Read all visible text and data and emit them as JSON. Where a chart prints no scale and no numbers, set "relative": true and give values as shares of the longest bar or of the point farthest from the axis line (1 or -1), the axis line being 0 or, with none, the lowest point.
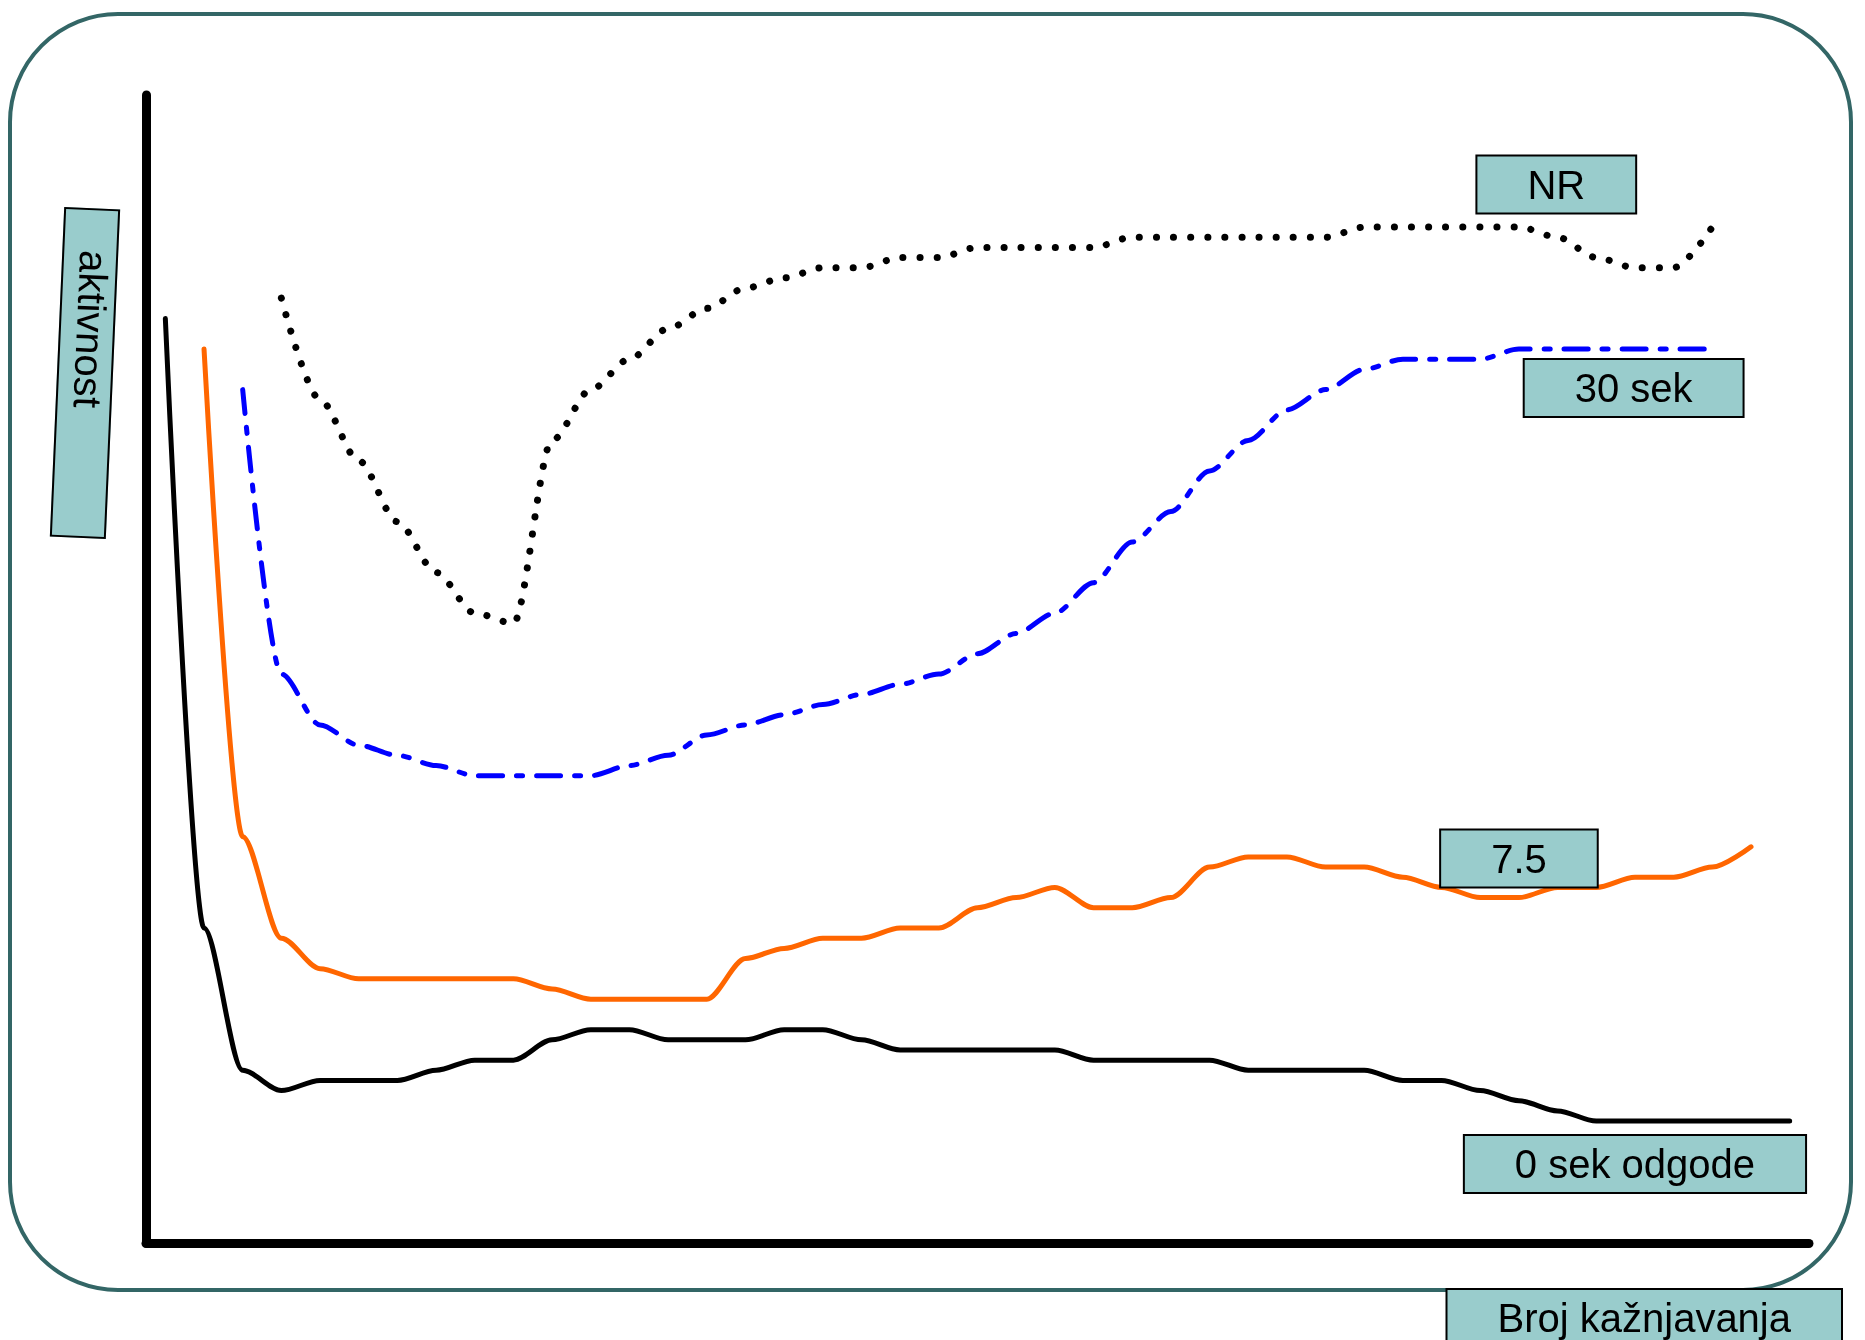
{
  "chart_data": {
    "type": "line",
    "relative": true,
    "xlabel": "Broj kažnjavanja",
    "ylabel": "aktivnost",
    "legend": false,
    "grid": false,
    "categories": [
      null,
      null,
      null,
      null,
      null,
      null,
      null,
      null,
      null,
      null,
      null,
      null,
      null,
      null,
      null,
      null,
      null,
      null,
      null,
      null,
      null,
      null,
      null,
      null,
      null,
      null,
      null,
      null,
      null,
      null,
      null,
      null,
      null,
      null,
      null,
      null,
      null,
      null,
      null,
      null,
      null,
      null,
      null
    ],
    "series": [
      {
        "name": "NR",
        "color": "#000000",
        "line_style": "dotted",
        "values": [
          null,
          null,
          null,
          0.93,
          0.83,
          0.77,
          0.71,
          0.66,
          0.62,
          0.61,
          0.79,
          0.84,
          0.87,
          0.9,
          0.92,
          0.94,
          0.95,
          0.96,
          0.96,
          0.97,
          0.97,
          0.98,
          0.98,
          0.98,
          0.98,
          0.99,
          0.99,
          0.99,
          0.99,
          0.99,
          0.99,
          1.0,
          1.0,
          1.0,
          1.0,
          1.0,
          0.99,
          0.97,
          0.96,
          0.96,
          1.0,
          null,
          null
        ]
      },
      {
        "name": "30 sek",
        "color": "#0000ff",
        "line_style": "dashed",
        "values": [
          null,
          null,
          0.84,
          0.56,
          0.51,
          0.49,
          0.48,
          0.47,
          0.46,
          0.46,
          0.46,
          0.46,
          0.47,
          0.48,
          0.5,
          0.51,
          0.52,
          0.53,
          0.54,
          0.55,
          0.56,
          0.58,
          0.6,
          0.62,
          0.65,
          0.69,
          0.72,
          0.76,
          0.79,
          0.82,
          0.84,
          0.86,
          0.87,
          0.87,
          0.87,
          0.88,
          0.88,
          0.88,
          0.88,
          0.88,
          0.88,
          null,
          null
        ]
      },
      {
        "name": "7.5",
        "color": "#ff6600",
        "line_style": "solid",
        "values": [
          null,
          0.88,
          0.4,
          0.3,
          0.27,
          0.26,
          0.26,
          0.26,
          0.26,
          0.26,
          0.25,
          0.24,
          0.24,
          0.24,
          0.24,
          0.28,
          0.29,
          0.3,
          0.3,
          0.31,
          0.31,
          0.33,
          0.34,
          0.35,
          0.33,
          0.33,
          0.34,
          0.37,
          0.38,
          0.38,
          0.37,
          0.37,
          0.36,
          0.35,
          0.34,
          0.34,
          0.35,
          0.35,
          0.36,
          0.36,
          0.37,
          0.39,
          null
        ]
      },
      {
        "name": "0 sek odgode",
        "color": "#000000",
        "line_style": "solid",
        "values": [
          0.91,
          0.31,
          0.17,
          0.15,
          0.16,
          0.16,
          0.16,
          0.17,
          0.18,
          0.18,
          0.2,
          0.21,
          0.21,
          0.2,
          0.2,
          0.2,
          0.21,
          0.21,
          0.2,
          0.19,
          0.19,
          0.19,
          0.19,
          0.19,
          0.18,
          0.18,
          0.18,
          0.18,
          0.17,
          0.17,
          0.17,
          0.17,
          0.16,
          0.16,
          0.15,
          0.14,
          0.13,
          0.12,
          0.12,
          0.12,
          0.12,
          0.12,
          0.12
        ]
      }
    ]
  }
}
